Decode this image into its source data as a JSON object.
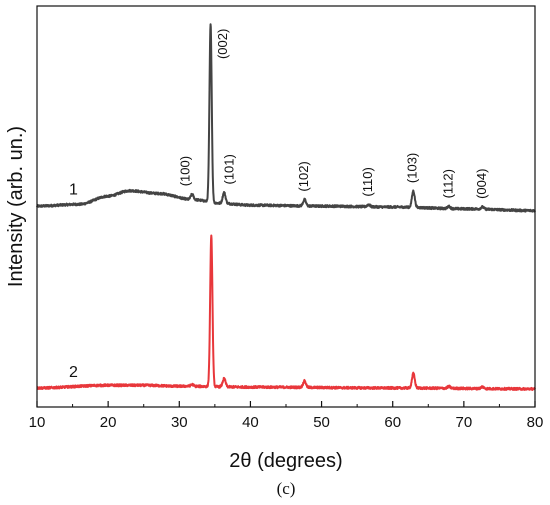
{
  "chart_data": {
    "type": "line",
    "xlabel": "2θ (degrees)",
    "ylabel": "Intensity (arb. un.)",
    "panel_label": "(c)",
    "xlim": [
      10,
      80
    ],
    "x_ticks": [
      10,
      20,
      30,
      40,
      50,
      60,
      70,
      80
    ],
    "grid": false,
    "series": [
      {
        "name": "1",
        "color": "#444444",
        "offset": 1.0,
        "baseline_points": [
          [
            10,
            0.005
          ],
          [
            16,
            0.015
          ],
          [
            20,
            0.06
          ],
          [
            23,
            0.09
          ],
          [
            27,
            0.075
          ],
          [
            32,
            0.04
          ],
          [
            36,
            0.02
          ],
          [
            40,
            0.01
          ],
          [
            50,
            0.005
          ],
          [
            60,
            0.0
          ],
          [
            70,
            -0.01
          ],
          [
            80,
            -0.02
          ]
        ],
        "peaks": [
          {
            "pos": 31.8,
            "height": 0.03,
            "hkl": "(100)"
          },
          {
            "pos": 34.4,
            "height": 0.98,
            "hkl": "(002)"
          },
          {
            "pos": 36.3,
            "height": 0.06,
            "hkl": "(101)"
          },
          {
            "pos": 47.6,
            "height": 0.035,
            "hkl": "(102)"
          },
          {
            "pos": 56.6,
            "height": 0.012,
            "hkl": "(110)"
          },
          {
            "pos": 62.9,
            "height": 0.09,
            "hkl": "(103)"
          },
          {
            "pos": 67.9,
            "height": 0.012,
            "hkl": "(112)"
          },
          {
            "pos": 72.6,
            "height": 0.012,
            "hkl": "(004)"
          }
        ]
      },
      {
        "name": "2",
        "color": "#e8373b",
        "offset": 0.0,
        "baseline_points": [
          [
            10,
            0.0
          ],
          [
            20,
            0.015
          ],
          [
            25,
            0.015
          ],
          [
            30,
            0.01
          ],
          [
            40,
            0.005
          ],
          [
            60,
            0.0
          ],
          [
            80,
            -0.005
          ]
        ],
        "peaks": [
          {
            "pos": 31.8,
            "height": 0.01
          },
          {
            "pos": 34.5,
            "height": 0.83
          },
          {
            "pos": 36.3,
            "height": 0.045
          },
          {
            "pos": 47.6,
            "height": 0.035
          },
          {
            "pos": 62.9,
            "height": 0.08
          },
          {
            "pos": 67.9,
            "height": 0.01
          },
          {
            "pos": 72.6,
            "height": 0.01
          }
        ]
      }
    ]
  }
}
